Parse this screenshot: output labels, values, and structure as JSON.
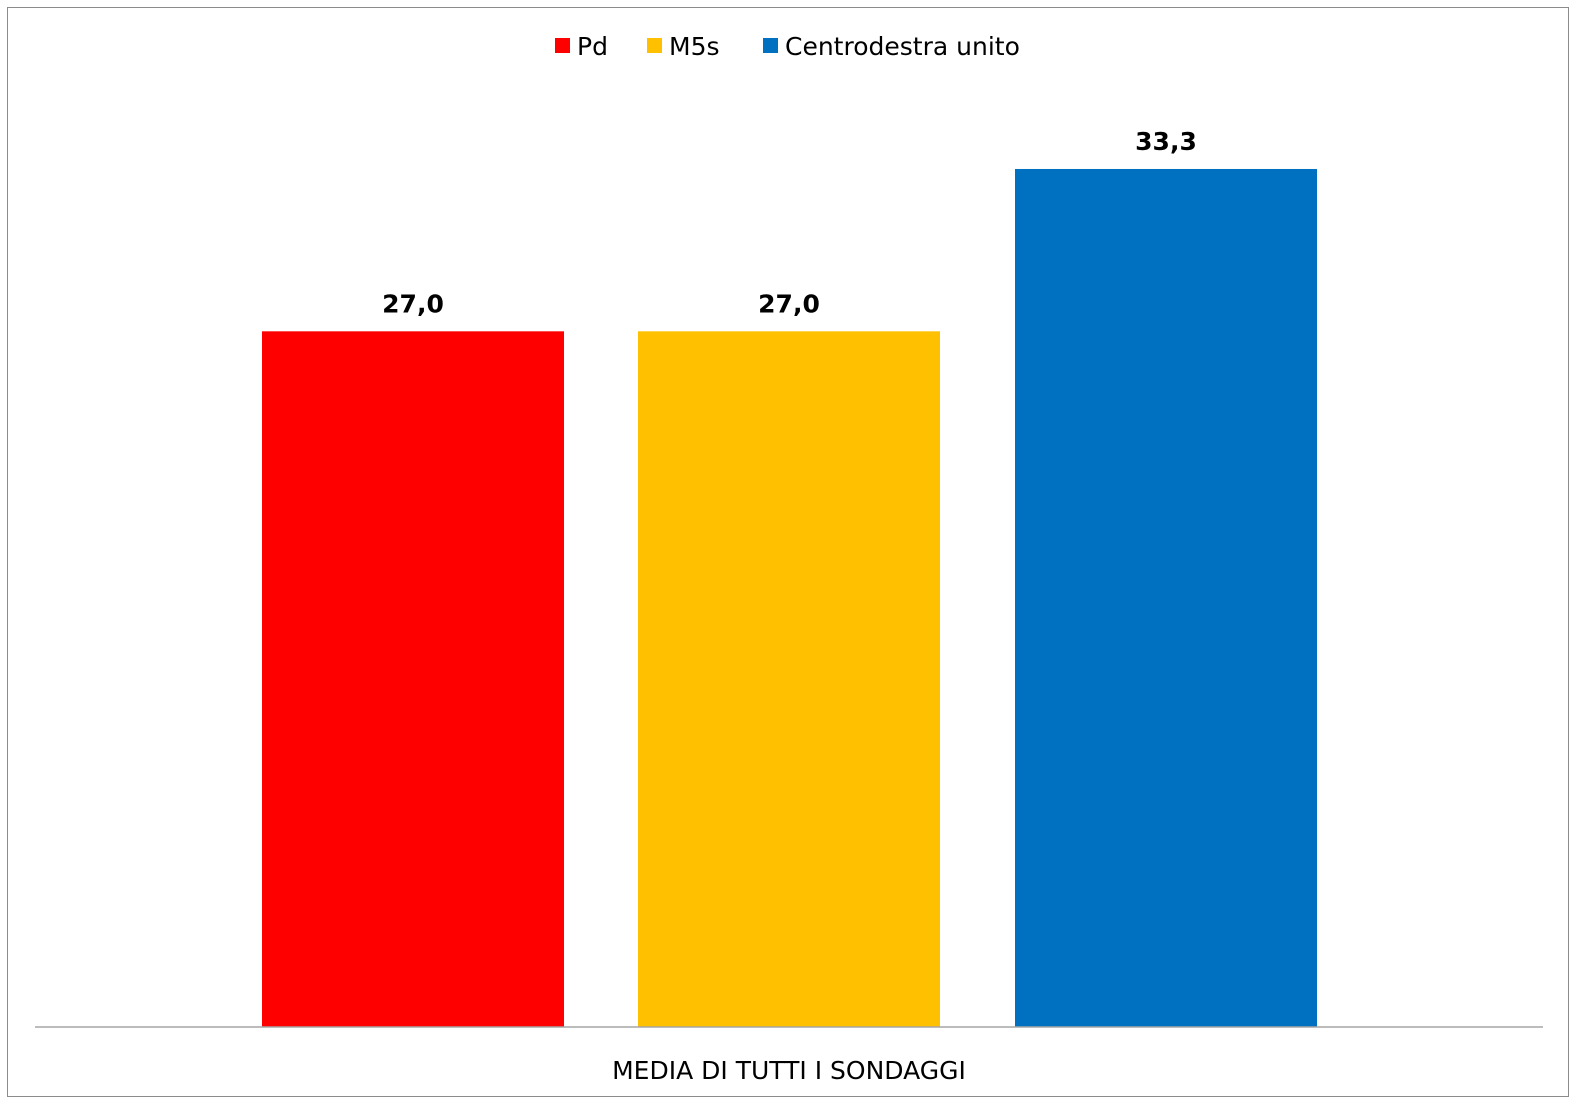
{
  "chart_data": {
    "type": "bar",
    "categories": [
      "MEDIA DI TUTTI I SONDAGGI"
    ],
    "series": [
      {
        "name": "Pd",
        "values": [
          27.0
        ],
        "value_label": "27,0",
        "color": "#ff0000"
      },
      {
        "name": "M5s",
        "values": [
          27.0
        ],
        "value_label": "27,0",
        "color": "#ffc000"
      },
      {
        "name": "Centrodestra unito",
        "values": [
          33.3
        ],
        "value_label": "33,3",
        "color": "#0070c0"
      }
    ],
    "title": "",
    "xlabel": "",
    "ylabel": "",
    "ylim": [
      0,
      38.5
    ],
    "grid": false,
    "legend_position": "top"
  }
}
